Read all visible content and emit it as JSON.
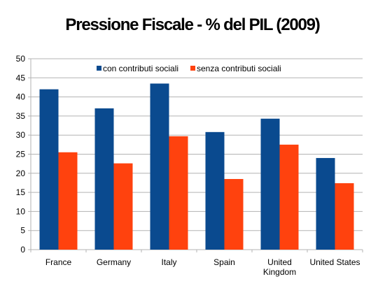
{
  "chart_data": {
    "type": "bar",
    "title": "Pressione Fiscale - % del PIL (2009)",
    "categories": [
      "France",
      "Germany",
      "Italy",
      "Spain",
      "United Kingdom",
      "United States"
    ],
    "category_lines": [
      [
        "France"
      ],
      [
        "Germany"
      ],
      [
        "Italy"
      ],
      [
        "Spain"
      ],
      [
        "United",
        "Kingdom"
      ],
      [
        "United States"
      ]
    ],
    "series": [
      {
        "name": "con contributi sociali",
        "color": "#0a4a8f",
        "values": [
          42,
          37,
          43.5,
          30.8,
          34.3,
          24
        ]
      },
      {
        "name": "senza contributi sociali",
        "color": "#ff420e",
        "values": [
          25.5,
          22.6,
          29.7,
          18.5,
          27.5,
          17.4
        ]
      }
    ],
    "ylim": [
      0,
      50
    ],
    "yticks": [
      0,
      5,
      10,
      15,
      20,
      25,
      30,
      35,
      40,
      45,
      50
    ],
    "grid": true,
    "legend_position": "top-center"
  }
}
